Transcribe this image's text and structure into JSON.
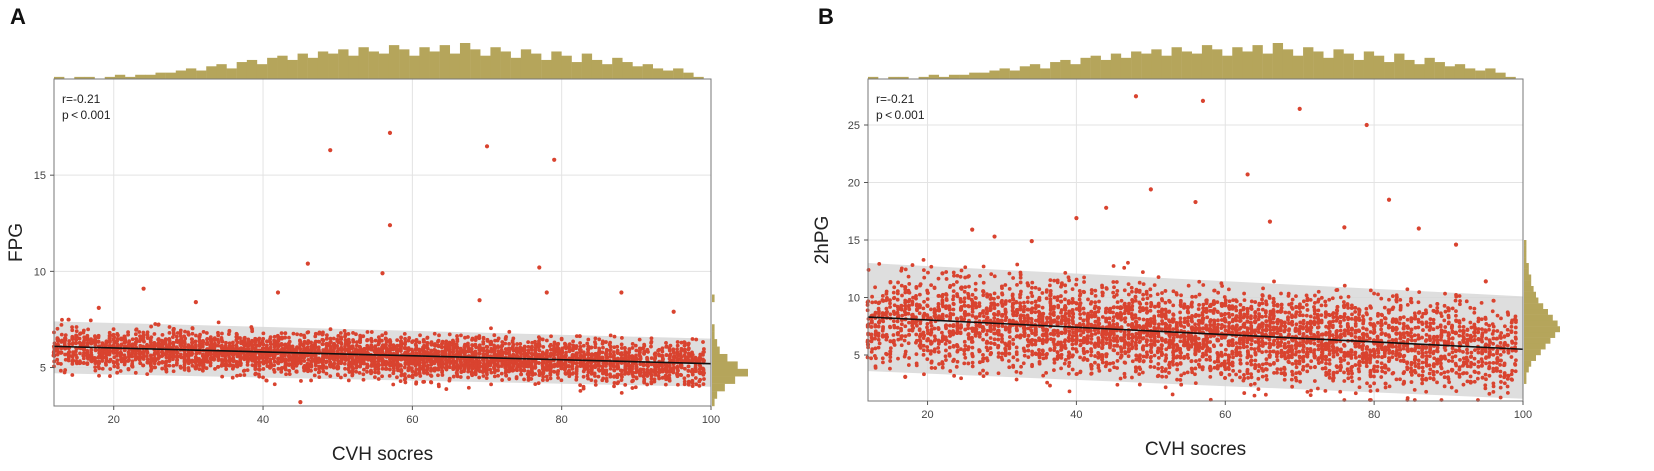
{
  "colors": {
    "points": "#d9432f",
    "histogram": "#b5a55b",
    "band": "#d8d8d8",
    "line": "#111111",
    "grid": "#e3e3e3"
  },
  "chart_data": [
    {
      "type": "scatter",
      "panel_label": "A",
      "xlabel": "CVH socres",
      "ylabel": "FPG",
      "xlim": [
        12,
        100
      ],
      "ylim": [
        3,
        20
      ],
      "xticks": [
        20,
        40,
        60,
        80,
        100
      ],
      "yticks": [
        5,
        10,
        15
      ],
      "annotation": {
        "r": "r=-0.21",
        "p": "p < 0.001"
      },
      "fit": {
        "x": [
          12,
          100
        ],
        "y": [
          6.1,
          5.2
        ],
        "band_low": [
          4.7,
          4.0
        ],
        "band_high": [
          7.4,
          6.5
        ]
      },
      "bulk": {
        "x_start": 12,
        "x_end": 99,
        "center": [
          6.0,
          5.2
        ],
        "spread": 1.15
      },
      "outliers": [
        [
          49,
          16.3
        ],
        [
          57,
          17.2
        ],
        [
          57,
          12.4
        ],
        [
          70,
          16.5
        ],
        [
          79,
          15.8
        ],
        [
          77,
          10.2
        ],
        [
          46,
          10.4
        ],
        [
          56,
          9.9
        ],
        [
          24,
          9.1
        ],
        [
          31,
          8.4
        ],
        [
          42,
          8.9
        ],
        [
          78,
          8.9
        ],
        [
          88,
          8.9
        ],
        [
          18,
          8.1
        ],
        [
          69,
          8.5
        ],
        [
          95,
          7.9
        ],
        [
          45,
          3.2
        ]
      ],
      "hist_x": [
        1,
        0,
        1,
        1,
        0,
        1,
        2,
        1,
        2,
        2,
        3,
        3,
        4,
        5,
        4,
        6,
        7,
        5,
        8,
        9,
        7,
        10,
        11,
        9,
        12,
        10,
        13,
        12,
        14,
        11,
        15,
        13,
        12,
        16,
        14,
        11,
        15,
        13,
        16,
        12,
        17,
        14,
        11,
        15,
        13,
        10,
        14,
        12,
        9,
        13,
        11,
        8,
        12,
        9,
        7,
        10,
        8,
        6,
        7,
        5,
        4,
        5,
        3,
        1
      ],
      "hist_y": [
        1,
        2,
        5,
        9,
        14,
        10,
        6,
        3,
        2,
        1,
        1,
        0,
        0,
        0,
        1,
        0,
        0,
        0,
        0,
        0,
        0,
        0,
        0,
        0,
        0,
        0,
        0,
        0,
        0,
        0,
        0,
        0,
        0,
        0,
        0,
        0,
        0,
        0,
        0,
        0,
        0,
        0,
        0,
        0
      ]
    },
    {
      "type": "scatter",
      "panel_label": "B",
      "xlabel": "CVH socres",
      "ylabel": "2hPG",
      "xlim": [
        12,
        100
      ],
      "ylim": [
        1,
        29
      ],
      "xticks": [
        20,
        40,
        60,
        80,
        100
      ],
      "yticks": [
        5,
        10,
        15,
        20,
        25
      ],
      "annotation": {
        "r": "r=-0.21",
        "p": "p < 0.001"
      },
      "fit": {
        "x": [
          12,
          100
        ],
        "y": [
          8.3,
          5.5
        ],
        "band_low": [
          3.6,
          1.2
        ],
        "band_high": [
          13.0,
          10.1
        ]
      },
      "bulk": {
        "x_start": 12,
        "x_end": 99,
        "center": [
          8.2,
          5.6
        ],
        "spread": 4.2
      },
      "outliers": [
        [
          48,
          27.5
        ],
        [
          57,
          27.1
        ],
        [
          70,
          26.4
        ],
        [
          79,
          25.0
        ],
        [
          63,
          20.7
        ],
        [
          82,
          18.5
        ],
        [
          56,
          18.3
        ],
        [
          50,
          19.4
        ],
        [
          44,
          17.8
        ],
        [
          40,
          16.9
        ],
        [
          66,
          16.6
        ],
        [
          86,
          16.0
        ],
        [
          76,
          16.1
        ],
        [
          29,
          15.3
        ],
        [
          26,
          15.9
        ],
        [
          34,
          14.9
        ],
        [
          91,
          14.6
        ],
        [
          22,
          12.1
        ],
        [
          17,
          10.9
        ],
        [
          95,
          11.4
        ],
        [
          15,
          5.3
        ],
        [
          12,
          5.9
        ],
        [
          17,
          3.1
        ]
      ],
      "hist_x": [
        1,
        0,
        1,
        1,
        0,
        1,
        2,
        1,
        2,
        2,
        3,
        3,
        4,
        5,
        4,
        6,
        7,
        5,
        8,
        9,
        7,
        10,
        11,
        9,
        12,
        10,
        13,
        12,
        14,
        11,
        15,
        13,
        12,
        16,
        14,
        11,
        15,
        13,
        16,
        12,
        17,
        14,
        11,
        15,
        13,
        10,
        14,
        12,
        9,
        13,
        11,
        8,
        12,
        9,
        7,
        10,
        8,
        6,
        7,
        5,
        4,
        5,
        3,
        1
      ],
      "hist_y": [
        0,
        0,
        0,
        1,
        1,
        2,
        3,
        5,
        7,
        9,
        11,
        13,
        15,
        14,
        12,
        10,
        8,
        6,
        5,
        4,
        3,
        3,
        2,
        2,
        1,
        1,
        1,
        1,
        0,
        0,
        0,
        0,
        0,
        0,
        0,
        0,
        0,
        0,
        0,
        0,
        0,
        0,
        0,
        0,
        0,
        0,
        0,
        0,
        0,
        0,
        0,
        0,
        0,
        0,
        0,
        0
      ]
    }
  ]
}
